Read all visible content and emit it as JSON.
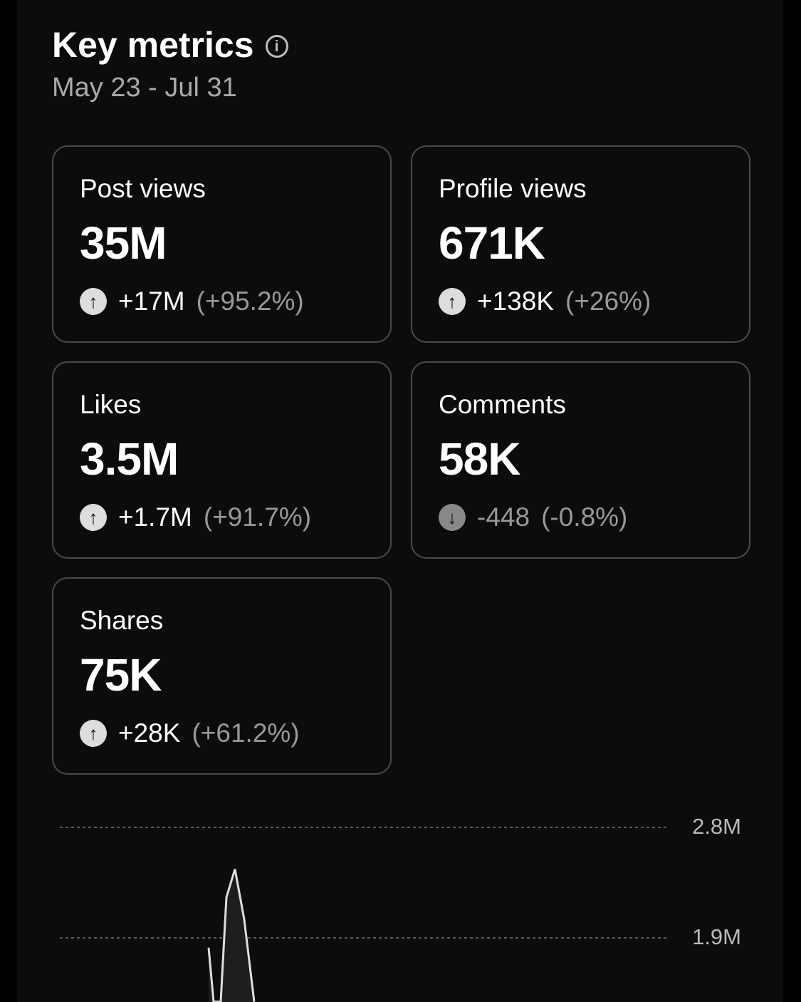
{
  "header": {
    "title": "Key metrics",
    "info_icon": "info-circle-icon",
    "date_range": "May 23 - Jul 31"
  },
  "metrics": [
    {
      "label": "Post views",
      "value": "35M",
      "change": "+17M",
      "percent": "(+95.2%)",
      "direction": "up"
    },
    {
      "label": "Profile views",
      "value": "671K",
      "change": "+138K",
      "percent": "(+26%)",
      "direction": "up"
    },
    {
      "label": "Likes",
      "value": "3.5M",
      "change": "+1.7M",
      "percent": "(+91.7%)",
      "direction": "up"
    },
    {
      "label": "Comments",
      "value": "58K",
      "change": "-448",
      "percent": "(-0.8%)",
      "direction": "down"
    },
    {
      "label": "Shares",
      "value": "75K",
      "change": "+28K",
      "percent": "(+61.2%)",
      "direction": "up"
    }
  ],
  "chart_data": {
    "type": "area",
    "y_ticks": [
      "2.8M",
      "1.9M"
    ],
    "y_tick_values": [
      2800000,
      1900000
    ],
    "grid": true,
    "grid_style": "dashed",
    "line_color": "#dddddd",
    "fill_color": "#1e1e1e",
    "visible_values": [
      1820000,
      1380000,
      1380000,
      2230000,
      2460000,
      2050000,
      1380000
    ]
  }
}
